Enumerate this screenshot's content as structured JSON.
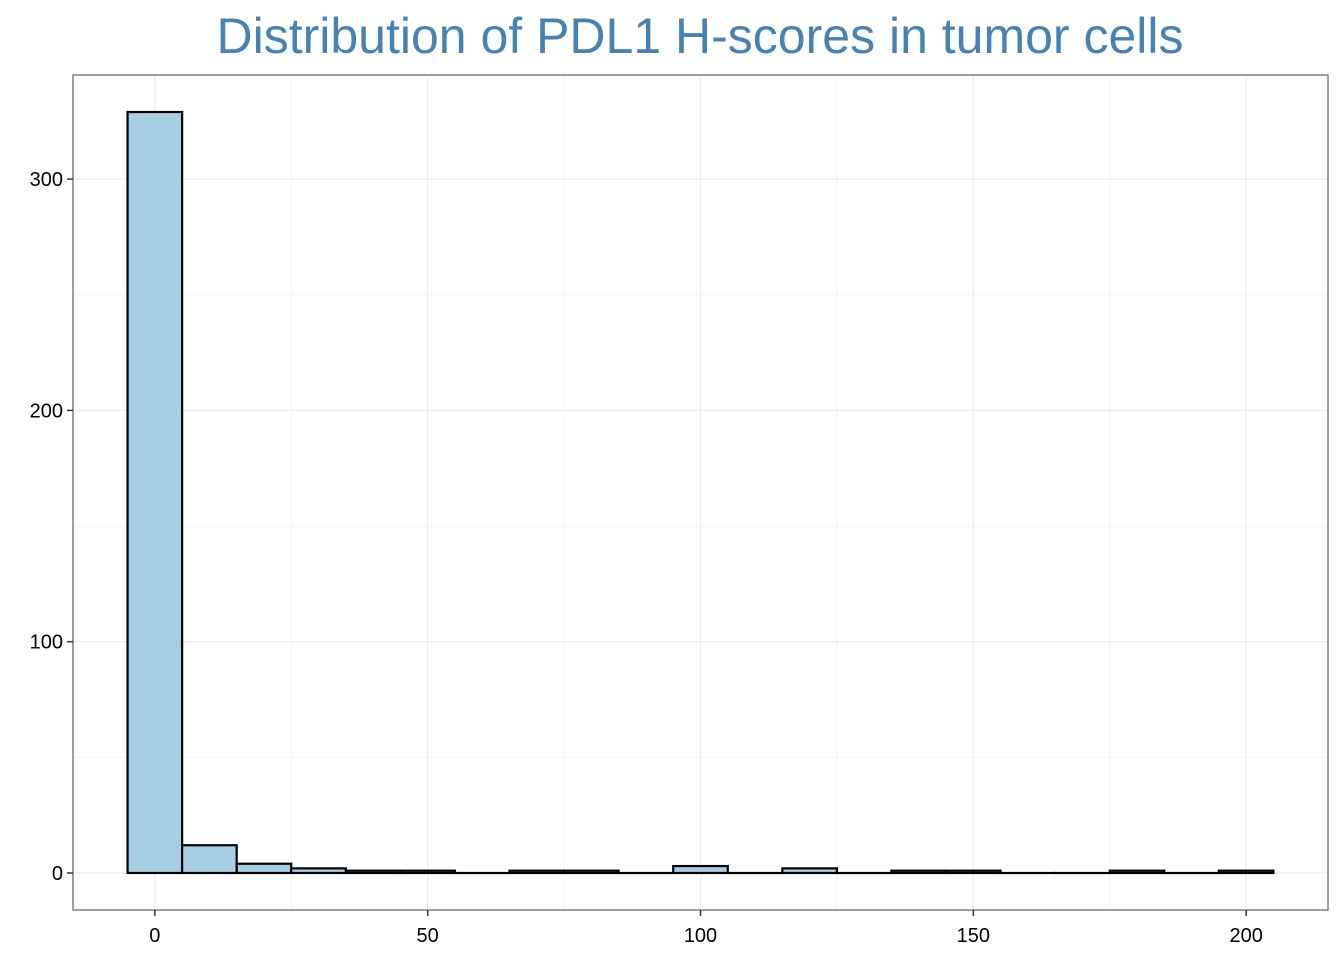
{
  "chart_data": {
    "type": "bar",
    "title": "Distribution of PDL1 H-scores in tumor cells",
    "xlabel": "",
    "ylabel": "",
    "bin_width": 10,
    "x": [
      0,
      10,
      20,
      30,
      40,
      50,
      60,
      70,
      80,
      90,
      100,
      110,
      120,
      130,
      140,
      150,
      160,
      170,
      180,
      190,
      200
    ],
    "values": [
      329,
      12,
      4,
      2,
      1,
      1,
      0,
      1,
      1,
      0,
      3,
      0,
      2,
      0,
      1,
      1,
      0,
      0,
      1,
      0,
      1
    ],
    "xlim": [
      -15,
      215
    ],
    "ylim": [
      -16,
      345
    ],
    "x_ticks": [
      0,
      50,
      100,
      150,
      200
    ],
    "y_ticks": [
      0,
      100,
      200,
      300
    ],
    "x_tick_labels": [
      "0",
      "50",
      "100",
      "150",
      "200"
    ],
    "y_tick_labels": [
      "0",
      "100",
      "200",
      "300"
    ],
    "grid": true,
    "legend": "none",
    "colors": {
      "bar_fill": "#a6cee3",
      "bar_stroke": "#000000",
      "title": "#4682b4",
      "grid_major": "#ebebeb",
      "grid_minor": "#f5f5f5",
      "panel_border": "#7f7f7f"
    }
  }
}
